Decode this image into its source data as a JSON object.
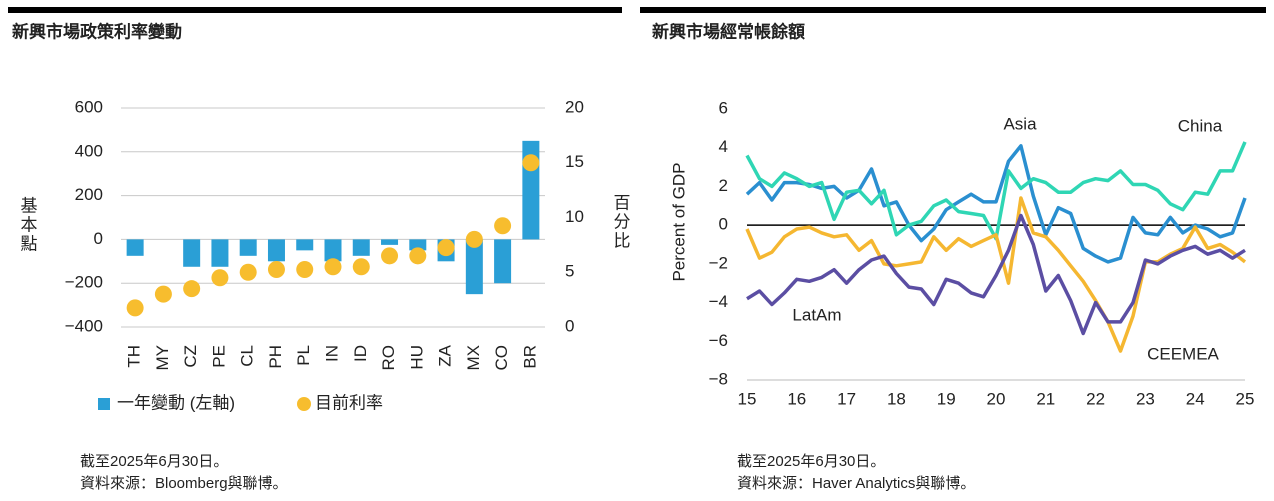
{
  "chart_data": [
    {
      "type": "bar",
      "title": "新興市場政策利率變動",
      "ylabel": "基本點",
      "y2label": "百分比",
      "categories": [
        "TH",
        "MY",
        "CZ",
        "PE",
        "CL",
        "PH",
        "PL",
        "IN",
        "ID",
        "RO",
        "HU",
        "ZA",
        "MX",
        "CO",
        "BR"
      ],
      "series": [
        {
          "name": "一年變動 (左軸)",
          "type": "bar",
          "color": "#2a9fd6",
          "values": [
            -75,
            0,
            -125,
            -125,
            -75,
            -100,
            -50,
            -100,
            -75,
            -25,
            -50,
            -100,
            -250,
            -200,
            450
          ]
        },
        {
          "name": "目前利率",
          "type": "scatter",
          "axis": "y2",
          "color": "#f7bd2e",
          "values": [
            1.75,
            3.0,
            3.5,
            4.5,
            5.0,
            5.25,
            5.25,
            5.5,
            5.5,
            6.5,
            6.5,
            7.25,
            8.0,
            9.25,
            15.0
          ]
        }
      ],
      "ylim": [
        -400,
        600
      ],
      "yticks": [
        {
          "value": -400,
          "label": "−400"
        },
        {
          "value": -200,
          "label": "−200"
        },
        0,
        200,
        400,
        600
      ],
      "y2lim": [
        0,
        20
      ],
      "y2ticks": [
        0,
        5,
        10,
        15,
        20
      ],
      "grid": true,
      "legend": "bottom",
      "notes": [
        "截至2025年6月30日。",
        "資料來源：Bloomberg與聯博。"
      ]
    },
    {
      "type": "line",
      "title": "新興市場經常帳餘額",
      "ylabel": "Percent of GDP",
      "x": [
        15,
        15.25,
        15.5,
        15.75,
        16,
        16.25,
        16.5,
        16.75,
        17,
        17.25,
        17.5,
        17.75,
        18,
        18.25,
        18.5,
        18.75,
        19,
        19.25,
        19.5,
        19.75,
        20,
        20.25,
        20.5,
        20.75,
        21,
        21.25,
        21.5,
        21.75,
        22,
        22.25,
        22.5,
        22.75,
        23,
        23.25,
        23.5,
        23.75,
        24,
        24.25,
        24.5,
        24.75,
        25
      ],
      "series": [
        {
          "name": "Asia",
          "color": "#2a8fd0",
          "values": [
            1.6,
            2.2,
            1.3,
            2.2,
            2.2,
            2.1,
            1.9,
            2.0,
            1.4,
            1.8,
            2.9,
            1.0,
            1.2,
            0.0,
            -0.8,
            -0.2,
            0.8,
            1.2,
            1.6,
            1.2,
            1.2,
            3.3,
            4.1,
            1.5,
            -0.5,
            0.9,
            0.6,
            -1.2,
            -1.6,
            -1.9,
            -1.7,
            0.4,
            -0.4,
            -0.5,
            0.4,
            -0.4,
            0.0,
            -0.2,
            -0.6,
            -0.4,
            1.4
          ]
        },
        {
          "name": "China",
          "color": "#2fd6b4",
          "values": [
            3.6,
            2.4,
            2.0,
            2.7,
            2.4,
            2.0,
            2.2,
            0.3,
            1.7,
            1.8,
            1.1,
            1.8,
            -0.5,
            0.0,
            0.2,
            1.0,
            1.3,
            0.7,
            0.6,
            0.5,
            -0.7,
            2.8,
            1.9,
            2.4,
            2.2,
            1.7,
            1.7,
            2.2,
            2.4,
            2.3,
            2.8,
            2.1,
            2.1,
            1.8,
            1.1,
            0.8,
            1.7,
            1.6,
            2.8,
            2.8,
            4.3
          ]
        },
        {
          "name": "LatAm",
          "color": "#f5b731",
          "values": [
            -0.2,
            -1.7,
            -1.4,
            -0.6,
            -0.2,
            -0.1,
            -0.4,
            -0.6,
            -0.5,
            -1.3,
            -0.8,
            -2.0,
            -2.1,
            -2.0,
            -1.9,
            -0.6,
            -1.3,
            -0.7,
            -1.1,
            -0.8,
            -0.5,
            -3.0,
            1.4,
            -0.4,
            -0.6,
            -1.3,
            -2.1,
            -2.9,
            -3.9,
            -5.0,
            -6.5,
            -4.7,
            -1.9,
            -1.9,
            -1.5,
            -1.2,
            -0.1,
            -1.2,
            -1.0,
            -1.4,
            -1.9
          ]
        },
        {
          "name": "CEEMEA",
          "color": "#5b4ea3",
          "values": [
            -3.8,
            -3.4,
            -4.1,
            -3.5,
            -2.8,
            -2.9,
            -2.7,
            -2.3,
            -3.0,
            -2.3,
            -1.8,
            -1.6,
            -2.5,
            -3.2,
            -3.3,
            -4.1,
            -2.8,
            -3.0,
            -3.5,
            -3.7,
            -2.6,
            -1.3,
            0.5,
            -1.0,
            -3.4,
            -2.6,
            -3.9,
            -5.6,
            -4.0,
            -5.0,
            -5.0,
            -4.0,
            -1.8,
            -2.0,
            -1.6,
            -1.3,
            -1.1,
            -1.5,
            -1.3,
            -1.7,
            -1.3
          ]
        }
      ],
      "xlim": [
        15,
        25
      ],
      "xticks": [
        15,
        16,
        17,
        18,
        19,
        20,
        21,
        22,
        23,
        24,
        25
      ],
      "ylim": [
        -8,
        6
      ],
      "yticks": [
        {
          "value": -8,
          "label": "−8"
        },
        {
          "value": -6,
          "label": "−6"
        },
        {
          "value": -4,
          "label": "−4"
        },
        {
          "value": -2,
          "label": "−2"
        },
        0,
        2,
        4,
        6
      ],
      "grid": false,
      "notes": [
        "截至2025年6月30日。",
        "資料來源：Haver Analytics與聯博。"
      ]
    }
  ]
}
